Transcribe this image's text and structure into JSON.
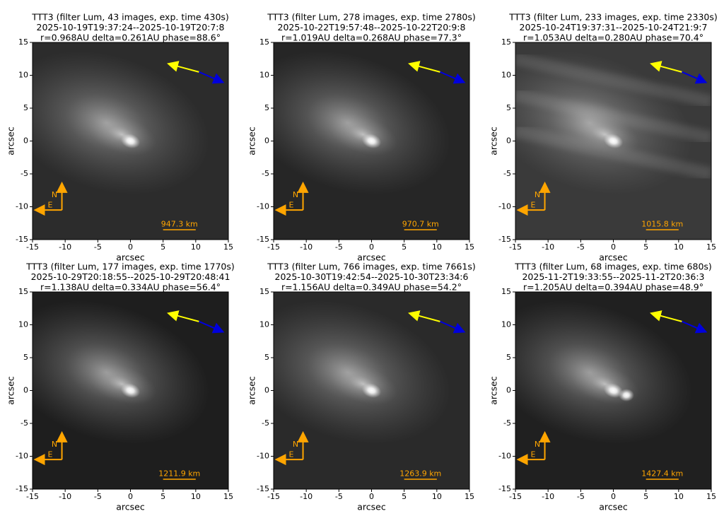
{
  "chart_data": [
    {
      "type": "image",
      "title": [
        "TTT3 (filter Lum, 43 images, exp. time 430s)",
        "2025-10-19T19:37:24--2025-10-19T20:7:8",
        "r=0.968AU delta=0.261AU phase=88.6°"
      ],
      "xlabel": "arcsec",
      "ylabel": "arcsec",
      "xlim": [
        -15,
        15
      ],
      "ylim": [
        -15,
        15
      ],
      "xticks": [
        -15,
        -10,
        -5,
        0,
        5,
        10,
        15
      ],
      "yticks": [
        -15,
        -10,
        -5,
        0,
        5,
        10,
        15
      ],
      "scale_label": "947.3 km",
      "north_label": "N",
      "east_label": "E"
    },
    {
      "type": "image",
      "title": [
        "TTT3 (filter Lum, 278 images, exp. time 2780s)",
        "2025-10-22T19:57:48--2025-10-22T20:9:8",
        "r=1.019AU delta=0.268AU phase=77.3°"
      ],
      "xlabel": "arcsec",
      "ylabel": "arcsec",
      "xlim": [
        -15,
        15
      ],
      "ylim": [
        -15,
        15
      ],
      "xticks": [
        -15,
        -10,
        -5,
        0,
        5,
        10,
        15
      ],
      "yticks": [
        -15,
        -10,
        -5,
        0,
        5,
        10,
        15
      ],
      "scale_label": "970.7 km",
      "north_label": "N",
      "east_label": "E"
    },
    {
      "type": "image",
      "title": [
        "TTT3 (filter Lum, 233 images, exp. time 2330s)",
        "2025-10-24T19:37:31--2025-10-24T21:9:7",
        "r=1.053AU delta=0.280AU phase=70.4°"
      ],
      "xlabel": "arcsec",
      "ylabel": "arcsec",
      "xlim": [
        -15,
        15
      ],
      "ylim": [
        -15,
        15
      ],
      "xticks": [
        -15,
        -10,
        -5,
        0,
        5,
        10,
        15
      ],
      "yticks": [
        -15,
        -10,
        -5,
        0,
        5,
        10,
        15
      ],
      "scale_label": "1015.8 km",
      "north_label": "N",
      "east_label": "E"
    },
    {
      "type": "image",
      "title": [
        "TTT3 (filter Lum, 177 images, exp. time 1770s)",
        "2025-10-29T20:18:55--2025-10-29T20:48:41",
        "r=1.138AU delta=0.334AU phase=56.4°"
      ],
      "xlabel": "arcsec",
      "ylabel": "arcsec",
      "xlim": [
        -15,
        15
      ],
      "ylim": [
        -15,
        15
      ],
      "xticks": [
        -15,
        -10,
        -5,
        0,
        5,
        10,
        15
      ],
      "yticks": [
        -15,
        -10,
        -5,
        0,
        5,
        10,
        15
      ],
      "scale_label": "1211.9 km",
      "north_label": "N",
      "east_label": "E"
    },
    {
      "type": "image",
      "title": [
        "TTT3 (filter Lum, 766 images, exp. time 7661s)",
        "2025-10-30T19:42:54--2025-10-30T23:34:6",
        "r=1.156AU delta=0.349AU phase=54.2°"
      ],
      "xlabel": "arcsec",
      "ylabel": "arcsec",
      "xlim": [
        -15,
        15
      ],
      "ylim": [
        -15,
        15
      ],
      "xticks": [
        -15,
        -10,
        -5,
        0,
        5,
        10,
        15
      ],
      "yticks": [
        -15,
        -10,
        -5,
        0,
        5,
        10,
        15
      ],
      "scale_label": "1263.9 km",
      "north_label": "N",
      "east_label": "E"
    },
    {
      "type": "image",
      "title": [
        "TTT3 (filter Lum, 68 images, exp. time 680s)",
        "2025-11-2T19:33:55--2025-11-2T20:36:3",
        "r=1.205AU delta=0.394AU phase=48.9°"
      ],
      "xlabel": "arcsec",
      "ylabel": "arcsec",
      "xlim": [
        -15,
        15
      ],
      "ylim": [
        -15,
        15
      ],
      "xticks": [
        -15,
        -10,
        -5,
        0,
        5,
        10,
        15
      ],
      "yticks": [
        -15,
        -10,
        -5,
        0,
        5,
        10,
        15
      ],
      "scale_label": "1427.4 km",
      "north_label": "N",
      "east_label": "E"
    }
  ]
}
